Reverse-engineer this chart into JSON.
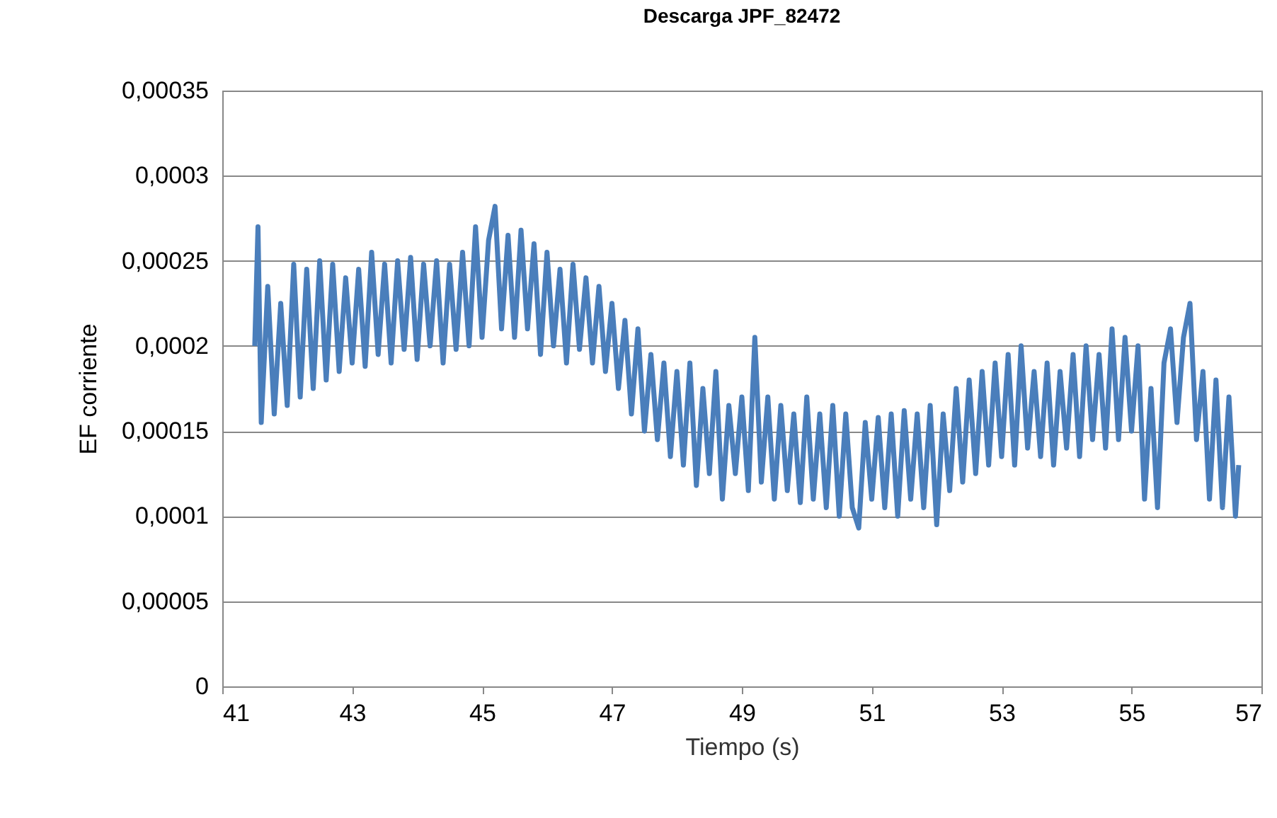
{
  "chart_data": {
    "type": "line",
    "title": "Descarga JPF_82472",
    "xlabel": "Tiempo (s)",
    "ylabel": "EF corriente",
    "color": "#4a7ebb",
    "grid": "y",
    "xlim": [
      41,
      57
    ],
    "xticks": [
      41,
      43,
      45,
      47,
      49,
      51,
      53,
      55,
      57
    ],
    "ylim": [
      0,
      0.00035
    ],
    "yticks": [
      {
        "value": 0,
        "label": "0"
      },
      {
        "value": 5e-05,
        "label": "0,00005"
      },
      {
        "value": 0.0001,
        "label": "0,0001"
      },
      {
        "value": 0.00015,
        "label": "0,00015"
      },
      {
        "value": 0.0002,
        "label": "0,0002"
      },
      {
        "value": 0.00025,
        "label": "0,00025"
      },
      {
        "value": 0.0003,
        "label": "0,0003"
      },
      {
        "value": 0.00035,
        "label": "0,00035"
      }
    ],
    "x": [
      41.5,
      41.55,
      41.6,
      41.7,
      41.8,
      41.9,
      42.0,
      42.1,
      42.2,
      42.3,
      42.4,
      42.5,
      42.6,
      42.7,
      42.8,
      42.9,
      43.0,
      43.1,
      43.2,
      43.3,
      43.4,
      43.5,
      43.6,
      43.7,
      43.8,
      43.9,
      44.0,
      44.1,
      44.2,
      44.3,
      44.4,
      44.5,
      44.6,
      44.7,
      44.8,
      44.9,
      45.0,
      45.1,
      45.2,
      45.3,
      45.4,
      45.5,
      45.6,
      45.7,
      45.8,
      45.9,
      46.0,
      46.1,
      46.2,
      46.3,
      46.4,
      46.5,
      46.6,
      46.7,
      46.8,
      46.9,
      47.0,
      47.1,
      47.2,
      47.3,
      47.4,
      47.5,
      47.6,
      47.7,
      47.8,
      47.9,
      48.0,
      48.1,
      48.2,
      48.3,
      48.4,
      48.5,
      48.6,
      48.7,
      48.8,
      48.9,
      49.0,
      49.1,
      49.2,
      49.3,
      49.4,
      49.5,
      49.6,
      49.7,
      49.8,
      49.9,
      50.0,
      50.1,
      50.2,
      50.3,
      50.4,
      50.5,
      50.6,
      50.7,
      50.8,
      50.9,
      51.0,
      51.1,
      51.2,
      51.3,
      51.4,
      51.5,
      51.6,
      51.7,
      51.8,
      51.9,
      52.0,
      52.1,
      52.2,
      52.3,
      52.4,
      52.5,
      52.6,
      52.7,
      52.8,
      52.9,
      53.0,
      53.1,
      53.2,
      53.3,
      53.4,
      53.5,
      53.6,
      53.7,
      53.8,
      53.9,
      54.0,
      54.1,
      54.2,
      54.3,
      54.4,
      54.5,
      54.6,
      54.7,
      54.8,
      54.9,
      55.0,
      55.1,
      55.2,
      55.3,
      55.4,
      55.5,
      55.6,
      55.7,
      55.8,
      55.9,
      56.0,
      56.1,
      56.2,
      56.3,
      56.4,
      56.5,
      56.6,
      56.65
    ],
    "values": [
      0.0002,
      0.00027,
      0.000155,
      0.000235,
      0.00016,
      0.000225,
      0.000165,
      0.000248,
      0.00017,
      0.000245,
      0.000175,
      0.00025,
      0.00018,
      0.000248,
      0.000185,
      0.00024,
      0.00019,
      0.000245,
      0.000188,
      0.000255,
      0.000195,
      0.000248,
      0.00019,
      0.00025,
      0.000198,
      0.000252,
      0.000192,
      0.000248,
      0.0002,
      0.00025,
      0.00019,
      0.000248,
      0.000198,
      0.000255,
      0.0002,
      0.00027,
      0.000205,
      0.000262,
      0.000282,
      0.00021,
      0.000265,
      0.000205,
      0.000268,
      0.00021,
      0.00026,
      0.000195,
      0.000255,
      0.0002,
      0.000245,
      0.00019,
      0.000248,
      0.000198,
      0.00024,
      0.00019,
      0.000235,
      0.000185,
      0.000225,
      0.000175,
      0.000215,
      0.00016,
      0.00021,
      0.00015,
      0.000195,
      0.000145,
      0.00019,
      0.000135,
      0.000185,
      0.00013,
      0.00019,
      0.000118,
      0.000175,
      0.000125,
      0.000185,
      0.00011,
      0.000165,
      0.000125,
      0.00017,
      0.000115,
      0.000205,
      0.00012,
      0.00017,
      0.00011,
      0.000165,
      0.000115,
      0.00016,
      0.000108,
      0.00017,
      0.00011,
      0.00016,
      0.000105,
      0.000165,
      0.0001,
      0.00016,
      0.000105,
      9.3e-05,
      0.000155,
      0.00011,
      0.000158,
      0.000105,
      0.00016,
      0.0001,
      0.000162,
      0.00011,
      0.00016,
      0.000105,
      0.000165,
      9.5e-05,
      0.00016,
      0.000115,
      0.000175,
      0.00012,
      0.00018,
      0.000125,
      0.000185,
      0.00013,
      0.00019,
      0.000135,
      0.000195,
      0.00013,
      0.0002,
      0.00014,
      0.000185,
      0.000135,
      0.00019,
      0.00013,
      0.000185,
      0.00014,
      0.000195,
      0.000135,
      0.0002,
      0.000145,
      0.000195,
      0.00014,
      0.00021,
      0.000145,
      0.000205,
      0.00015,
      0.0002,
      0.00011,
      0.000175,
      0.000105,
      0.00019,
      0.00021,
      0.000155,
      0.000205,
      0.000225,
      0.000145,
      0.000185,
      0.00011,
      0.00018,
      0.000105,
      0.00017,
      0.0001,
      0.00013
    ]
  }
}
